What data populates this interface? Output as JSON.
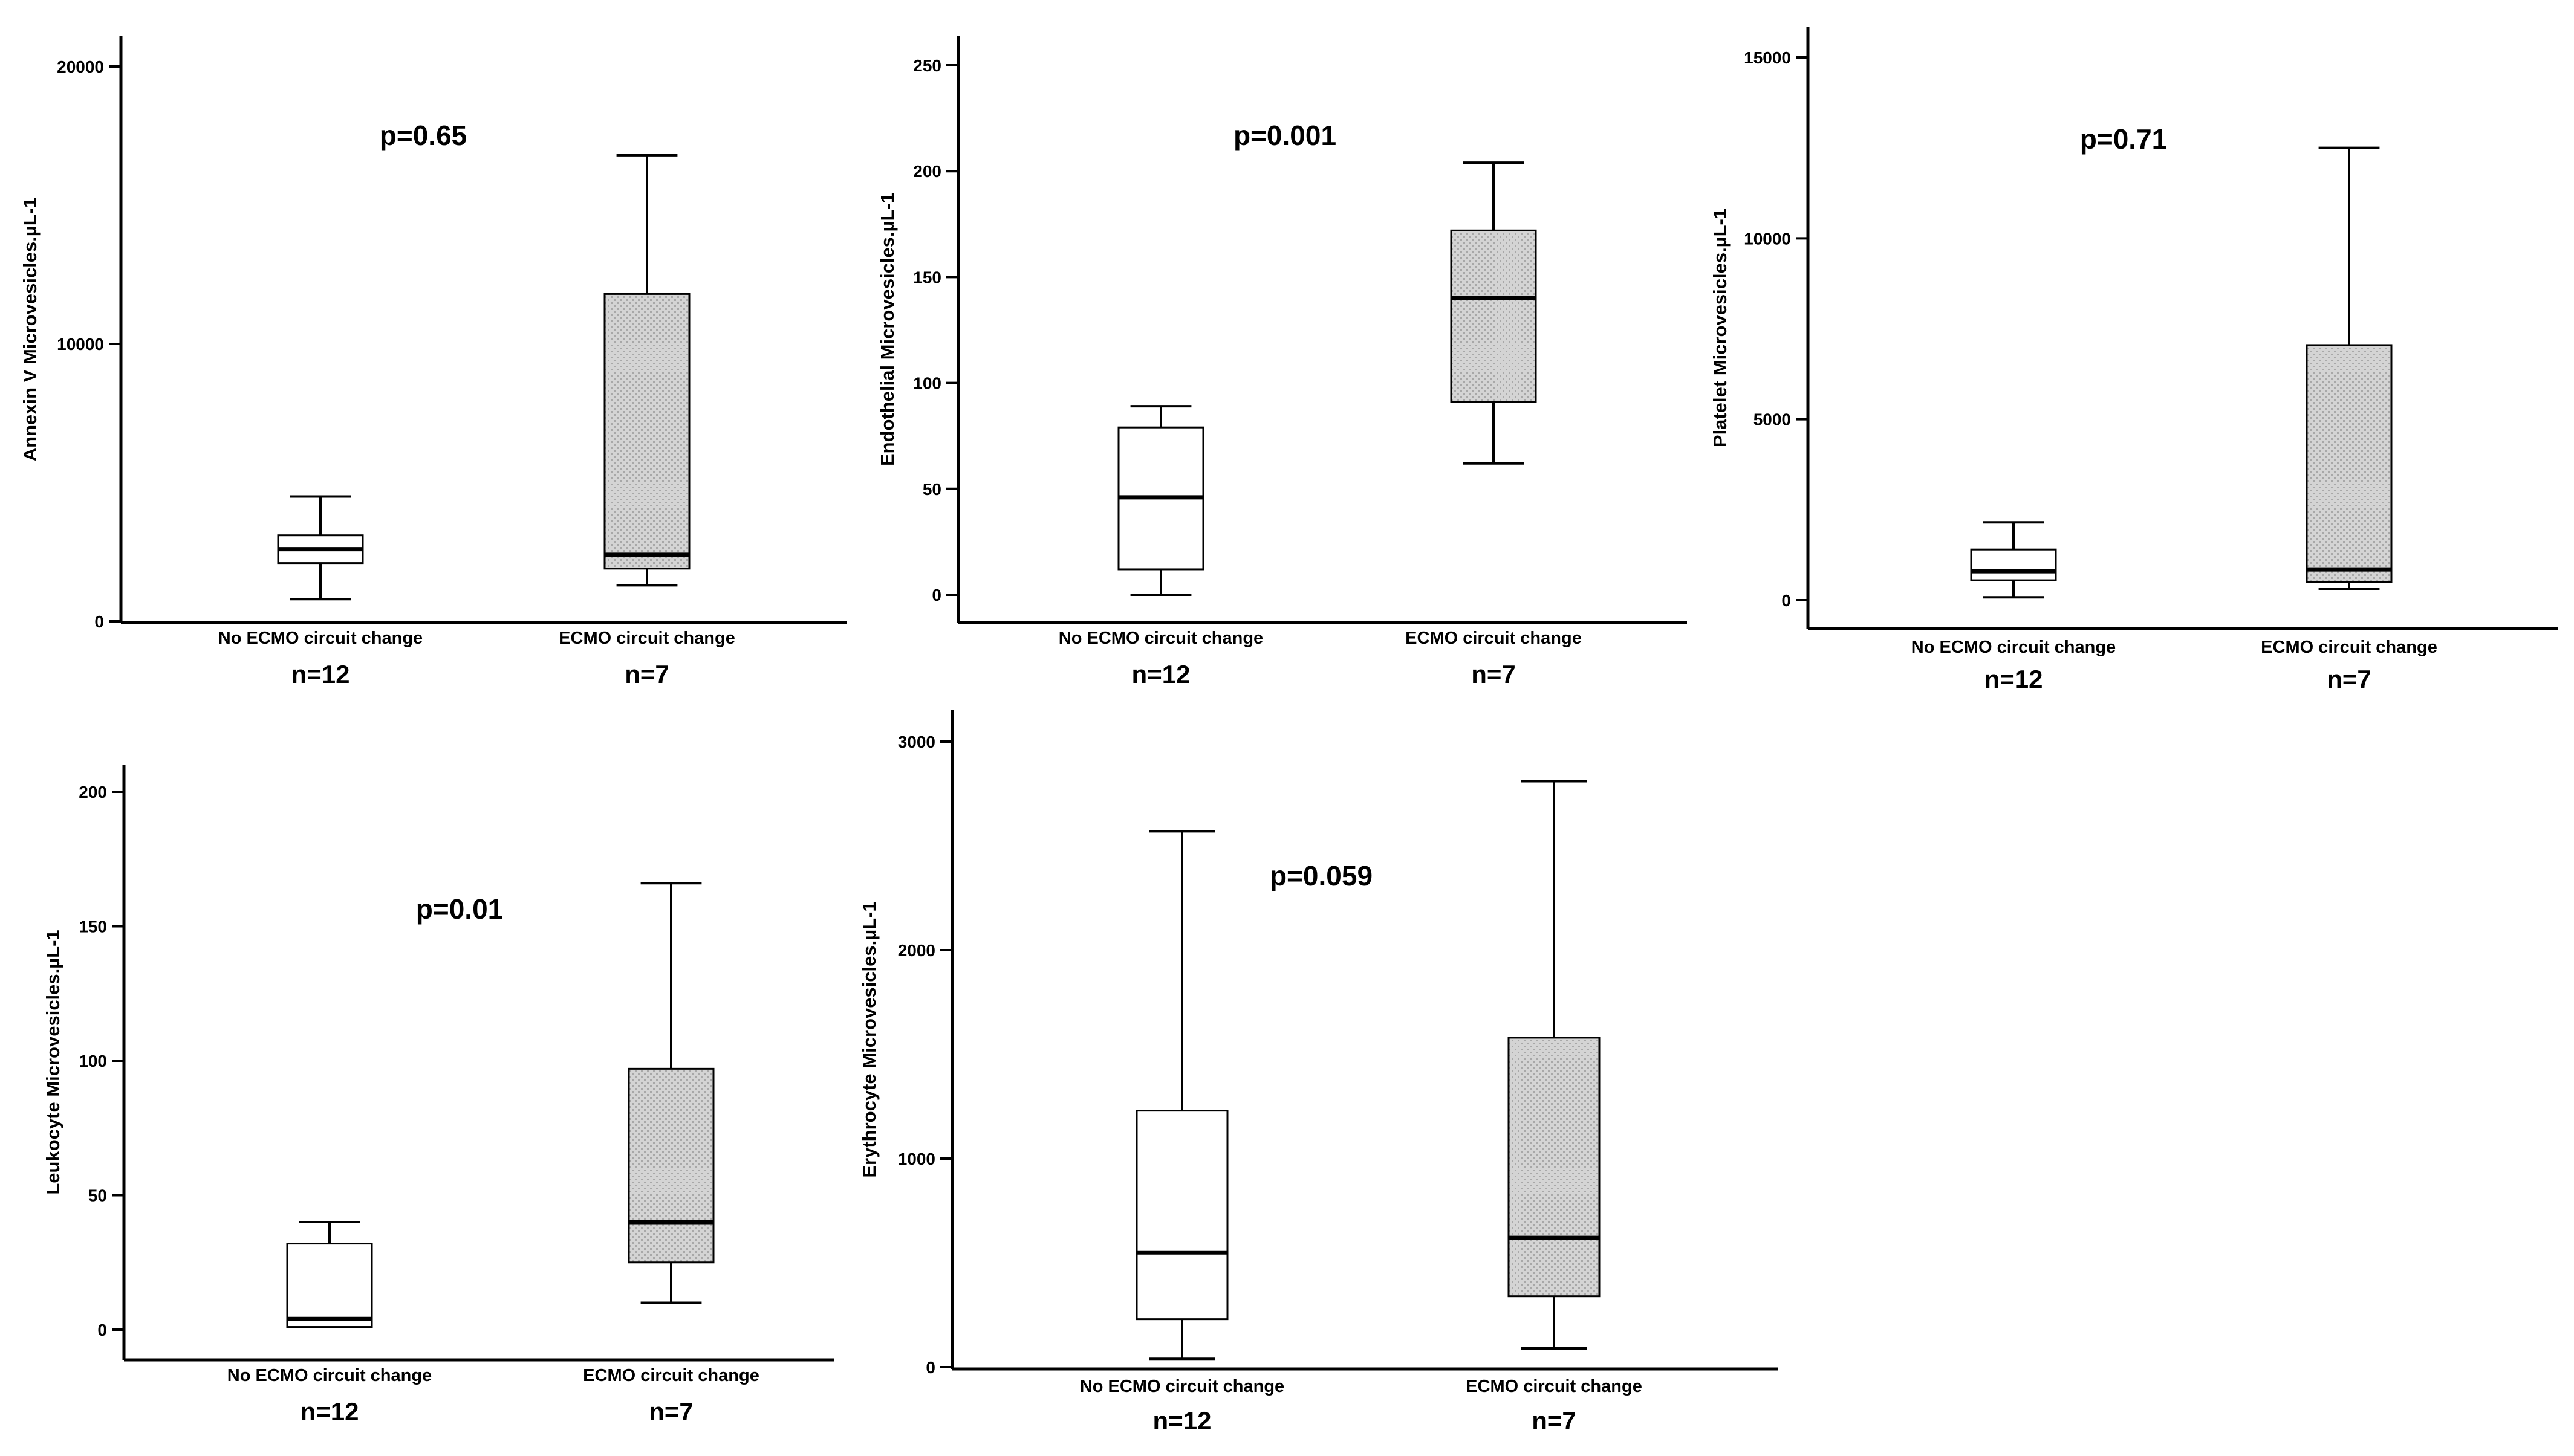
{
  "colors": {
    "axis": "#000000",
    "box_control": "#ffffff",
    "box_ecmo": "#d6d6d6",
    "background": "#ffffff"
  },
  "chart_data": [
    {
      "type": "boxplot",
      "ylabel": "Annexin V Microvesicles.µL-1",
      "yticks": [
        0,
        10000,
        20000
      ],
      "ylim": [
        0,
        21000
      ],
      "pvalue": "p=0.65",
      "categories": [
        "No ECMO circuit change",
        "ECMO circuit change"
      ],
      "n_labels": [
        "n=12",
        "n=7"
      ],
      "boxes": [
        {
          "whisker_low": 800,
          "q1": 2100,
          "median": 2600,
          "q3": 3100,
          "whisker_high": 4500
        },
        {
          "whisker_low": 1300,
          "q1": 1900,
          "median": 2400,
          "q3": 11800,
          "whisker_high": 16800
        }
      ]
    },
    {
      "type": "boxplot",
      "ylabel": "Endothelial Microvesicles.µL-1",
      "yticks": [
        0,
        50,
        100,
        150,
        200,
        250
      ],
      "ylim": [
        -12,
        262
      ],
      "pvalue": "p=0.001",
      "categories": [
        "No ECMO circuit change",
        "ECMO circuit change"
      ],
      "n_labels": [
        "n=12",
        "n=7"
      ],
      "boxes": [
        {
          "whisker_low": 0,
          "q1": 12,
          "median": 46,
          "q3": 79,
          "whisker_high": 89
        },
        {
          "whisker_low": 62,
          "q1": 91,
          "median": 140,
          "q3": 172,
          "whisker_high": 204
        }
      ]
    },
    {
      "type": "boxplot",
      "ylabel": "Platelet Microvesicles.µL-1",
      "yticks": [
        0,
        5000,
        10000,
        15000
      ],
      "ylim": [
        -750,
        15900
      ],
      "pvalue": "p=0.71",
      "categories": [
        "No ECMO circuit change",
        "ECMO circuit change"
      ],
      "n_labels": [
        "n=12",
        "n=7"
      ],
      "boxes": [
        {
          "whisker_low": 80,
          "q1": 550,
          "median": 800,
          "q3": 1400,
          "whisker_high": 2150
        },
        {
          "whisker_low": 300,
          "q1": 500,
          "median": 850,
          "q3": 7050,
          "whisker_high": 12500
        }
      ]
    },
    {
      "type": "boxplot",
      "ylabel": "Leukocyte Microvesicles.µL-1",
      "yticks": [
        0,
        50,
        100,
        150,
        200
      ],
      "ylim": [
        -10,
        211
      ],
      "pvalue": "p=0.01",
      "categories": [
        "No ECMO circuit change",
        "ECMO circuit change"
      ],
      "n_labels": [
        "n=12",
        "n=7"
      ],
      "boxes": [
        {
          "whisker_low": 1,
          "q1": 1,
          "median": 4,
          "q3": 32,
          "whisker_high": 40
        },
        {
          "whisker_low": 10,
          "q1": 25,
          "median": 40,
          "q3": 97,
          "whisker_high": 166
        }
      ]
    },
    {
      "type": "boxplot",
      "ylabel": "Erythrocyte Microvesicles.µL-1",
      "yticks": [
        0,
        1000,
        2000,
        3000
      ],
      "ylim": [
        0,
        3150
      ],
      "pvalue": "p=0.059",
      "categories": [
        "No ECMO circuit change",
        "ECMO circuit change"
      ],
      "n_labels": [
        "n=12",
        "n=7"
      ],
      "boxes": [
        {
          "whisker_low": 40,
          "q1": 230,
          "median": 550,
          "q3": 1230,
          "whisker_high": 2570
        },
        {
          "whisker_low": 90,
          "q1": 340,
          "median": 620,
          "q3": 1580,
          "whisker_high": 2810
        }
      ]
    }
  ]
}
